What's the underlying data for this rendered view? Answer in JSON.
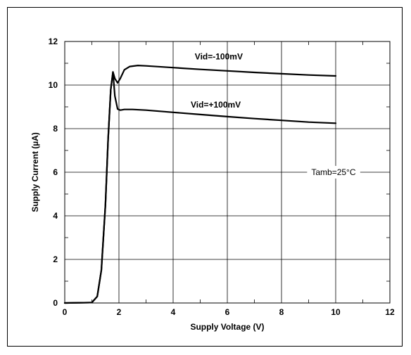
{
  "chart_data": {
    "type": "line",
    "xlabel": "Supply Voltage (V)",
    "ylabel": "Supply Current (µA)",
    "xlim": [
      0,
      12
    ],
    "ylim": [
      0,
      12
    ],
    "xticks": [
      0,
      2,
      4,
      6,
      8,
      10,
      12
    ],
    "yticks": [
      0,
      2,
      4,
      6,
      8,
      10,
      12
    ],
    "grid": true,
    "series": [
      {
        "name": "Vid=-100mV",
        "x": [
          0,
          1.0,
          1.2,
          1.35,
          1.5,
          1.6,
          1.7,
          1.78,
          1.85,
          1.95,
          2.05,
          2.2,
          2.4,
          2.7,
          3.0,
          4.0,
          5.0,
          6.0,
          7.0,
          8.0,
          9.0,
          10.0
        ],
        "y": [
          0,
          0.02,
          0.3,
          1.5,
          4.5,
          7.5,
          9.8,
          10.6,
          10.3,
          10.1,
          10.3,
          10.7,
          10.85,
          10.9,
          10.88,
          10.8,
          10.72,
          10.65,
          10.58,
          10.52,
          10.46,
          10.42
        ]
      },
      {
        "name": "Vid=+100mV",
        "x": [
          0,
          1.0,
          1.2,
          1.35,
          1.5,
          1.6,
          1.7,
          1.78,
          1.85,
          1.95,
          2.05,
          2.2,
          2.5,
          3.0,
          4.0,
          5.0,
          6.0,
          7.0,
          8.0,
          9.0,
          10.0
        ],
        "y": [
          0,
          0.02,
          0.3,
          1.5,
          4.5,
          7.5,
          9.8,
          10.6,
          9.5,
          8.9,
          8.85,
          8.88,
          8.88,
          8.85,
          8.75,
          8.65,
          8.55,
          8.46,
          8.38,
          8.3,
          8.25
        ]
      }
    ],
    "annotations": [
      {
        "text": "Vid=-100mV",
        "x": 4.8,
        "y": 11.3,
        "style": "bold"
      },
      {
        "text": "Vid=+100mV",
        "x": 4.65,
        "y": 9.1,
        "style": "bold"
      },
      {
        "text": "Tamb=25°C",
        "x": 9.1,
        "y": 6.0,
        "style": "normal"
      }
    ],
    "line_color": "#000000"
  }
}
